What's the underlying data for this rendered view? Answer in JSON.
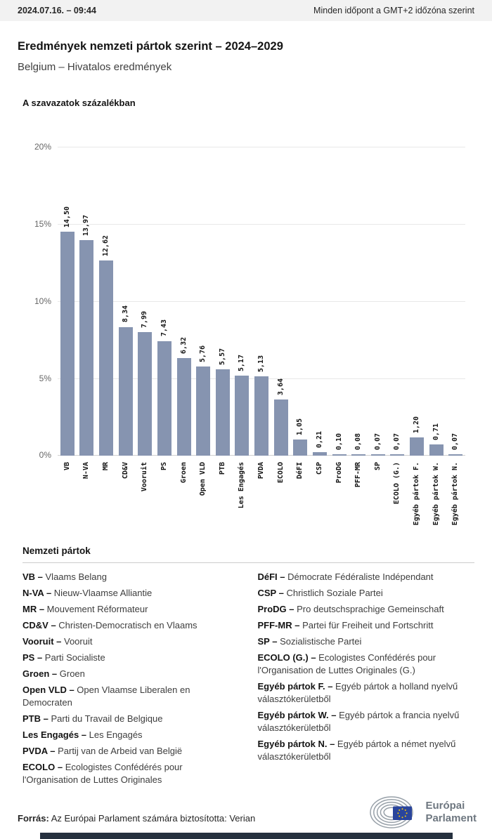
{
  "header": {
    "datetime": "2024.07.16. – 09:44",
    "timezone_note": "Minden időpont a GMT+2 időzóna szerint"
  },
  "title": "Eredmények nemzeti pártok szerint – 2024–2029",
  "subtitle": "Belgium – Hivatalos eredmények",
  "chart_data": {
    "type": "bar",
    "title": "A szavazatok százalékban",
    "categories": [
      "VB",
      "N-VA",
      "MR",
      "CD&V",
      "Vooruit",
      "PS",
      "Groen",
      "Open VLD",
      "PTB",
      "Les Engagés",
      "PVDA",
      "ECOLO",
      "DéFI",
      "CSP",
      "ProDG",
      "PFF-MR",
      "SP",
      "ECOLO (G.)",
      "Egyéb pártok F.",
      "Egyéb pártok W.",
      "Egyéb pártok N."
    ],
    "values": [
      14.5,
      13.97,
      12.62,
      8.34,
      7.99,
      7.43,
      6.32,
      5.76,
      5.57,
      5.17,
      5.13,
      3.64,
      1.05,
      0.21,
      0.1,
      0.08,
      0.07,
      0.07,
      1.2,
      0.71,
      0.07
    ],
    "value_labels": [
      "14,50",
      "13,97",
      "12,62",
      "8,34",
      "7,99",
      "7,43",
      "6,32",
      "5,76",
      "5,57",
      "5,17",
      "5,13",
      "3,64",
      "1,05",
      "0,21",
      "0,10",
      "0,08",
      "0,07",
      "0,07",
      "1,20",
      "0,71",
      "0,07"
    ],
    "xlabel": "",
    "ylabel": "",
    "ylim": [
      0,
      20
    ],
    "yticks": [
      "20%",
      "15%",
      "10%",
      "5%",
      "0%"
    ],
    "grid": true,
    "legend_position": "none",
    "bar_color": "#8694B0"
  },
  "legend": {
    "heading": "Nemzeti pártok",
    "left_column": [
      {
        "abbr": "VB –",
        "name": "Vlaams Belang"
      },
      {
        "abbr": "N-VA –",
        "name": "Nieuw-Vlaamse Alliantie"
      },
      {
        "abbr": "MR –",
        "name": "Mouvement Réformateur"
      },
      {
        "abbr": "CD&V –",
        "name": "Christen-Democratisch en Vlaams"
      },
      {
        "abbr": "Vooruit –",
        "name": "Vooruit"
      },
      {
        "abbr": "PS –",
        "name": "Parti Socialiste"
      },
      {
        "abbr": "Groen –",
        "name": "Groen"
      },
      {
        "abbr": "Open VLD –",
        "name": "Open Vlaamse Liberalen en Democraten"
      },
      {
        "abbr": "PTB –",
        "name": "Parti du Travail de Belgique"
      },
      {
        "abbr": "Les Engagés –",
        "name": "Les Engagés"
      },
      {
        "abbr": "PVDA –",
        "name": "Partij van de Arbeid van België"
      },
      {
        "abbr": "ECOLO –",
        "name": "Ecologistes Confédérés pour l'Organisation de Luttes Originales"
      }
    ],
    "right_column": [
      {
        "abbr": "DéFI –",
        "name": "Démocrate Fédéraliste Indépendant"
      },
      {
        "abbr": "CSP –",
        "name": "Christlich Soziale Partei"
      },
      {
        "abbr": "ProDG –",
        "name": "Pro deutschsprachige Gemeinschaft"
      },
      {
        "abbr": "PFF-MR –",
        "name": "Partei für Freiheit und Fortschritt"
      },
      {
        "abbr": "SP –",
        "name": "Sozialistische Partei"
      },
      {
        "abbr": "ECOLO (G.) –",
        "name": "Ecologistes Confédérés pour l'Organisation de Luttes Originales (G.)"
      },
      {
        "abbr": "Egyéb pártok F. –",
        "name": "Egyéb pártok a holland nyelvű választókerületből"
      },
      {
        "abbr": "Egyéb pártok W. –",
        "name": "Egyéb pártok a francia nyelvű választókerületből"
      },
      {
        "abbr": "Egyéb pártok N. –",
        "name": "Egyéb pártok a német nyelvű választókerületből"
      }
    ]
  },
  "footer": {
    "source_label": "Forrás:",
    "source_text": "Az Európai Parlament számára biztosította: Verian",
    "logo_line1": "Európai",
    "logo_line2": "Parlament"
  }
}
